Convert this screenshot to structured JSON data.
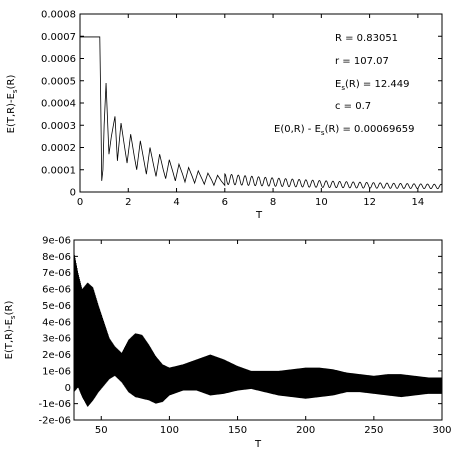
{
  "chart_data": [
    {
      "type": "line",
      "xlabel": "T",
      "ylabel_main": "E(T,R)-E",
      "ylabel_sub": "s",
      "ylabel_tail": "(R)",
      "xlim": [
        0,
        15
      ],
      "ylim": [
        0,
        0.0008
      ],
      "xticks": [
        "0",
        "2",
        "4",
        "6",
        "8",
        "10",
        "12",
        "14"
      ],
      "yticks": [
        "0",
        "0.0001",
        "0.0002",
        "0.0003",
        "0.0004",
        "0.0005",
        "0.0006",
        "0.0007",
        "0.0008"
      ],
      "grid": false,
      "legend": "none",
      "annotations": {
        "R": "R =  0.83051",
        "r": "r = 107.07",
        "Es_main": "E",
        "Es_sub": "s",
        "Es_tail": "(R) = 12.449",
        "c": "c = 0.7",
        "E0_main": "E(0,R) - E",
        "E0_sub": "s",
        "E0_tail": "(R) = 0.00069659"
      },
      "series": [
        {
          "x": [
            0,
            0.82,
            0.86,
            0.9,
            0.95,
            1.0,
            1.08,
            1.15,
            1.2,
            1.3,
            1.45,
            1.55,
            1.7,
            1.85,
            1.95,
            2.1,
            2.25,
            2.35,
            2.5,
            2.65,
            2.75,
            2.9,
            3.05,
            3.15,
            3.3,
            3.45,
            3.55,
            3.7,
            3.85,
            3.95,
            4.1,
            4.25,
            4.35,
            4.5,
            4.65,
            4.75,
            4.9,
            5.05,
            5.15,
            5.3,
            5.45,
            5.55,
            5.7,
            5.85,
            6.0,
            6.2,
            6.4,
            6.6,
            6.8,
            7.0,
            7.4,
            7.8,
            8.2,
            8.6,
            9.0,
            9.5,
            10.0,
            10.5,
            11.0,
            11.5,
            12.0,
            12.5,
            13.0,
            13.5,
            14.0,
            14.5,
            15.0
          ],
          "y": [
            0.000697,
            0.000697,
            0.0004,
            5e-05,
            0.0001,
            0.0003,
            0.00049,
            0.0003,
            0.00017,
            0.00025,
            0.00034,
            0.00014,
            0.00031,
            0.0002,
            0.00013,
            0.00026,
            0.00016,
            0.0001,
            0.00023,
            0.00014,
            8e-05,
            0.0002,
            0.00012,
            7e-05,
            0.00017,
            0.0001,
            6e-05,
            0.000145,
            9e-05,
            5e-05,
            0.000125,
            8e-05,
            4.5e-05,
            0.00011,
            7e-05,
            4e-05,
            9.5e-05,
            6e-05,
            3.5e-05,
            8.5e-05,
            5.5e-05,
            3e-05,
            7.5e-05,
            5e-05,
            3e-05,
            6.5e-05,
            3.5e-05,
            6e-05,
            3e-05,
            5.5e-05,
            3.5e-05,
            5e-05,
            3e-05,
            4.5e-05,
            2.8e-05,
            4e-05,
            2.5e-05,
            3.5e-05,
            2.2e-05,
            3e-05,
            2e-05,
            2.8e-05,
            1.8e-05,
            2.6e-05,
            1.6e-05,
            2.4e-05,
            1.5e-05
          ]
        }
      ]
    },
    {
      "type": "line",
      "xlabel": "T",
      "ylabel_main": "E(T,R)-E",
      "ylabel_sub": "s",
      "ylabel_tail": "(R)",
      "xlim": [
        30,
        300
      ],
      "ylim": [
        -2e-06,
        9e-06
      ],
      "xticks": [
        "50",
        "100",
        "150",
        "200",
        "250",
        "300"
      ],
      "yticks": [
        "-2e-06",
        "-1e-06",
        "0",
        "1e-06",
        "2e-06",
        "3e-06",
        "4e-06",
        "5e-06",
        "6e-06",
        "7e-06",
        "8e-06",
        "9e-06"
      ],
      "grid": false,
      "legend": "none",
      "envelope_upper": {
        "x": [
          30,
          33,
          36,
          40,
          44,
          48,
          52,
          56,
          60,
          65,
          70,
          75,
          80,
          85,
          90,
          95,
          100,
          110,
          120,
          130,
          140,
          150,
          160,
          170,
          180,
          190,
          200,
          210,
          220,
          230,
          240,
          250,
          260,
          270,
          280,
          290,
          300
        ],
        "y": [
          8.3e-06,
          7e-06,
          6e-06,
          6.4e-06,
          6.1e-06,
          5e-06,
          4e-06,
          3e-06,
          2.5e-06,
          2.1e-06,
          2.9e-06,
          3.3e-06,
          3.2e-06,
          2.6e-06,
          1.9e-06,
          1.4e-06,
          1.2e-06,
          1.4e-06,
          1.7e-06,
          2e-06,
          1.7e-06,
          1.3e-06,
          1e-06,
          1e-06,
          1e-06,
          1.1e-06,
          1.2e-06,
          1.2e-06,
          1.1e-06,
          9e-07,
          8e-07,
          7e-07,
          8e-07,
          8e-07,
          7e-07,
          6e-07,
          6e-07
        ]
      },
      "envelope_lower": {
        "x": [
          30,
          33,
          36,
          40,
          44,
          48,
          52,
          56,
          60,
          65,
          70,
          75,
          80,
          85,
          90,
          95,
          100,
          110,
          120,
          130,
          140,
          150,
          160,
          170,
          180,
          190,
          200,
          210,
          220,
          230,
          240,
          250,
          260,
          270,
          280,
          290,
          300
        ],
        "y": [
          -3e-07,
          0.0,
          -6e-07,
          -1.2e-06,
          -8e-07,
          -3e-07,
          1e-07,
          5e-07,
          7e-07,
          3e-07,
          -3e-07,
          -6e-07,
          -7e-07,
          -8e-07,
          -1e-06,
          -9e-07,
          -5e-07,
          -2e-07,
          -2e-07,
          -5e-07,
          -4e-07,
          -2e-07,
          -1e-07,
          -3e-07,
          -5e-07,
          -6e-07,
          -7e-07,
          -6e-07,
          -5e-07,
          -3e-07,
          -3e-07,
          -4e-07,
          -5e-07,
          -6e-07,
          -5e-07,
          -4e-07,
          -4e-07
        ]
      }
    }
  ]
}
